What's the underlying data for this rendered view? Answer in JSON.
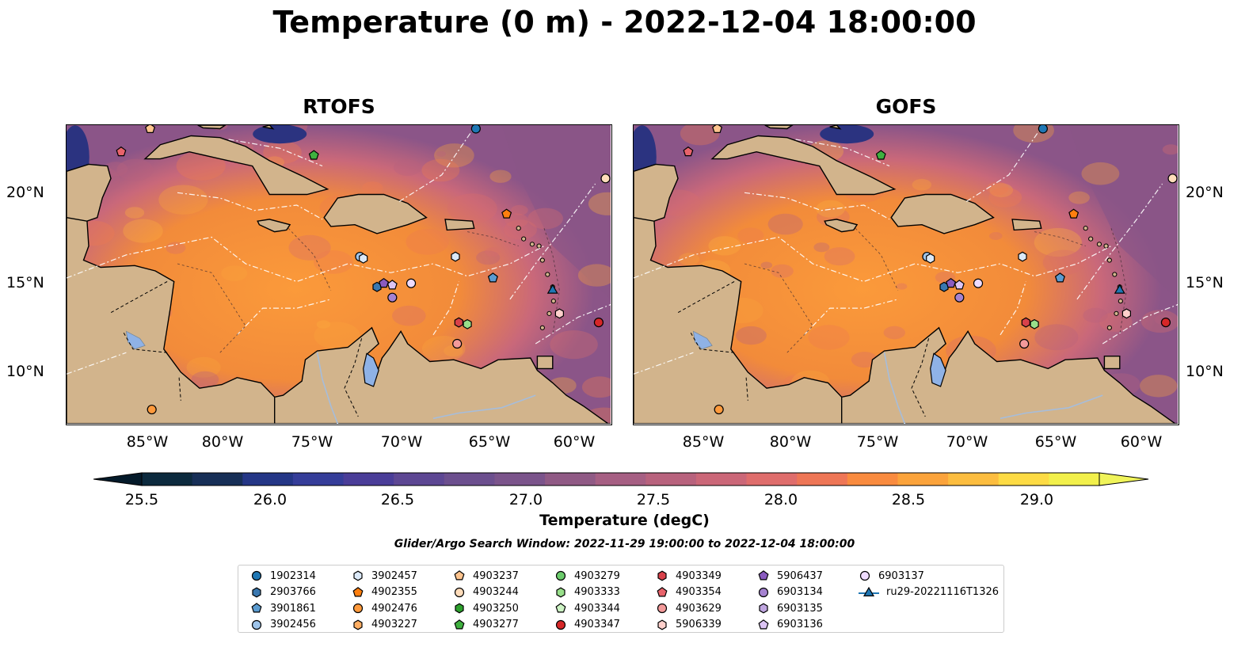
{
  "title": "Temperature (0 m) - 2022-12-04 18:00:00",
  "panels": [
    {
      "title": "RTOFS"
    },
    {
      "title": "GOFS"
    }
  ],
  "axes": {
    "lon_labels": [
      "85°W",
      "80°W",
      "75°W",
      "70°W",
      "65°W",
      "60°W"
    ],
    "lat_labels": [
      "20°N",
      "15°N",
      "10°N"
    ]
  },
  "colorbar": {
    "label": "Temperature (degC)",
    "ticks": [
      "25.5",
      "26.0",
      "26.5",
      "27.0",
      "27.5",
      "28.0",
      "28.5",
      "29.0"
    ],
    "colors": [
      "#0c2a3e",
      "#172f57",
      "#243686",
      "#353d99",
      "#4a3d98",
      "#5d4793",
      "#6c4f8e",
      "#7b548b",
      "#905a85",
      "#a65f83",
      "#b8627d",
      "#cb6778",
      "#df6d6c",
      "#ee7656",
      "#f98b3f",
      "#fba33b",
      "#fcbd3f",
      "#fddb44",
      "#f2f04b"
    ],
    "under_color": "#041a2a",
    "over_color": "#f0f45a"
  },
  "search_window": "Glider/Argo Search Window: 2022-11-29 19:00:00 to 2022-12-04 18:00:00",
  "legend": {
    "items": [
      {
        "label": "1902314",
        "marker": "circle",
        "color": "#1f77b4"
      },
      {
        "label": "2903766",
        "marker": "hexagon",
        "color": "#3a78b0"
      },
      {
        "label": "3901861",
        "marker": "pentagon",
        "color": "#5b9bd0"
      },
      {
        "label": "3902456",
        "marker": "circle",
        "color": "#9ec4ea"
      },
      {
        "label": "3902457",
        "marker": "hexagon",
        "color": "#dbe9f8"
      },
      {
        "label": "4902355",
        "marker": "pentagon",
        "color": "#ff7f0e"
      },
      {
        "label": "4902476",
        "marker": "circle",
        "color": "#ff9a3c"
      },
      {
        "label": "4903227",
        "marker": "hexagon",
        "color": "#ffae63"
      },
      {
        "label": "4903237",
        "marker": "pentagon",
        "color": "#ffc48e"
      },
      {
        "label": "4903244",
        "marker": "circle",
        "color": "#ffdcba"
      },
      {
        "label": "4903250",
        "marker": "hexagon",
        "color": "#2ca02c"
      },
      {
        "label": "4903277",
        "marker": "pentagon",
        "color": "#3fb03f"
      },
      {
        "label": "4903279",
        "marker": "circle",
        "color": "#6ccc6c"
      },
      {
        "label": "4903333",
        "marker": "hexagon",
        "color": "#98df8a"
      },
      {
        "label": "4903344",
        "marker": "pentagon",
        "color": "#cdf3c4"
      },
      {
        "label": "4903347",
        "marker": "circle",
        "color": "#d62728"
      },
      {
        "label": "4903349",
        "marker": "hexagon",
        "color": "#d8414a"
      },
      {
        "label": "4903354",
        "marker": "pentagon",
        "color": "#e8636b"
      },
      {
        "label": "4903629",
        "marker": "circle",
        "color": "#f39a9a"
      },
      {
        "label": "5906339",
        "marker": "hexagon",
        "color": "#ffd0cc"
      },
      {
        "label": "5906437",
        "marker": "pentagon",
        "color": "#8a5bbf"
      },
      {
        "label": "6903134",
        "marker": "circle",
        "color": "#a582d0"
      },
      {
        "label": "6903135",
        "marker": "hexagon",
        "color": "#c0a6e0"
      },
      {
        "label": "6903136",
        "marker": "pentagon",
        "color": "#dcc4f4"
      },
      {
        "label": "6903137",
        "marker": "circle",
        "color": "#efdcff"
      },
      {
        "label": "ru29-20221116T1326",
        "marker": "glider",
        "color": "#1f77b4"
      }
    ]
  },
  "map_colors": {
    "land": "#d2b48c",
    "lake": "#8fb2e6",
    "river": "#a6bddb"
  },
  "map_markers": [
    {
      "float": "1902314",
      "lon": -65.5,
      "lat": 23.6
    },
    {
      "float": "2903766",
      "lon": -71.3,
      "lat": 14.7
    },
    {
      "float": "3901861",
      "lon": -64.5,
      "lat": 15.2
    },
    {
      "float": "3902456",
      "lon": -72.3,
      "lat": 16.4
    },
    {
      "float": "3902457",
      "lon": -72.1,
      "lat": 16.3
    },
    {
      "float": "3902457",
      "lon": -66.7,
      "lat": 16.4
    },
    {
      "float": "4902355",
      "lon": -63.7,
      "lat": 18.8
    },
    {
      "float": "4902476",
      "lon": -84.5,
      "lat": 7.8
    },
    {
      "float": "4903237",
      "lon": -84.6,
      "lat": 23.6
    },
    {
      "float": "4903244",
      "lon": -57.9,
      "lat": 20.8
    },
    {
      "float": "4903277",
      "lon": -75.0,
      "lat": 22.1
    },
    {
      "float": "4903333",
      "lon": -66.0,
      "lat": 12.6
    },
    {
      "float": "4903347",
      "lon": -58.3,
      "lat": 12.7
    },
    {
      "float": "4903349",
      "lon": -66.5,
      "lat": 12.7
    },
    {
      "float": "4903354",
      "lon": -86.3,
      "lat": 22.3
    },
    {
      "float": "4903629",
      "lon": -66.6,
      "lat": 11.5
    },
    {
      "float": "5906339",
      "lon": -60.6,
      "lat": 13.2
    },
    {
      "float": "5906437",
      "lon": -70.9,
      "lat": 14.9
    },
    {
      "float": "6903134",
      "lon": -70.4,
      "lat": 14.1
    },
    {
      "float": "6903136",
      "lon": -70.4,
      "lat": 14.8
    },
    {
      "float": "6903137",
      "lon": -69.3,
      "lat": 14.9
    },
    {
      "float": "ru29-20221116T1326",
      "lon": -61.0,
      "lat": 14.5
    }
  ]
}
